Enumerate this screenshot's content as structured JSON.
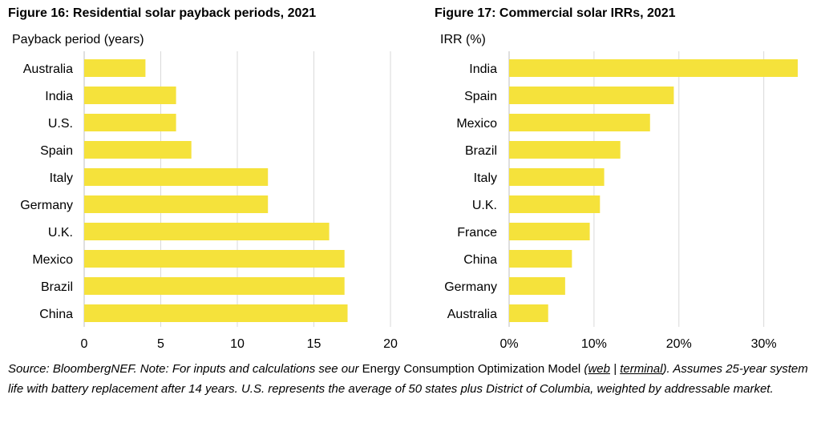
{
  "chart_data": [
    {
      "type": "bar",
      "orientation": "horizontal",
      "title": "Figure 16: Residential solar payback periods, 2021",
      "ylabel": "Payback period (years)",
      "categories": [
        "Australia",
        "India",
        "U.S.",
        "Spain",
        "Italy",
        "Germany",
        "U.K.",
        "Mexico",
        "Brazil",
        "China"
      ],
      "values": [
        4,
        6,
        6,
        7,
        12,
        12,
        16,
        17,
        17,
        17.2
      ],
      "xlim": [
        0,
        20
      ],
      "xticks": [
        0,
        5,
        10,
        15,
        20
      ],
      "xtick_labels": [
        "0",
        "5",
        "10",
        "15",
        "20"
      ],
      "grid": true,
      "bar_color": "#f5e23b"
    },
    {
      "type": "bar",
      "orientation": "horizontal",
      "title": "Figure 17: Commercial solar IRRs, 2021",
      "ylabel": "IRR (%)",
      "categories": [
        "India",
        "Spain",
        "Mexico",
        "Brazil",
        "Italy",
        "U.K.",
        "France",
        "China",
        "Germany",
        "Australia"
      ],
      "values": [
        34,
        19.4,
        16.6,
        13.1,
        11.2,
        10.7,
        9.5,
        7.4,
        6.6,
        4.6
      ],
      "xlim": [
        0,
        34
      ],
      "xticks": [
        0,
        10,
        20,
        30
      ],
      "xtick_labels": [
        "0%",
        "10%",
        "20%",
        "30%"
      ],
      "grid": true,
      "bar_color": "#f5e23b"
    }
  ],
  "note": {
    "italic_1": "Source: BloombergNEF. Note: For inputs and calculations see our ",
    "plain_1": "Energy Consumption Optimization Model",
    "italic_2": " (",
    "link_web": "web",
    "sep": " | ",
    "link_terminal": "terminal",
    "italic_3": "). Assumes 25-year system life with battery replacement after 14 years. U.S. represents the average of 50 states plus District of Columbia, weighted by addressable market."
  }
}
